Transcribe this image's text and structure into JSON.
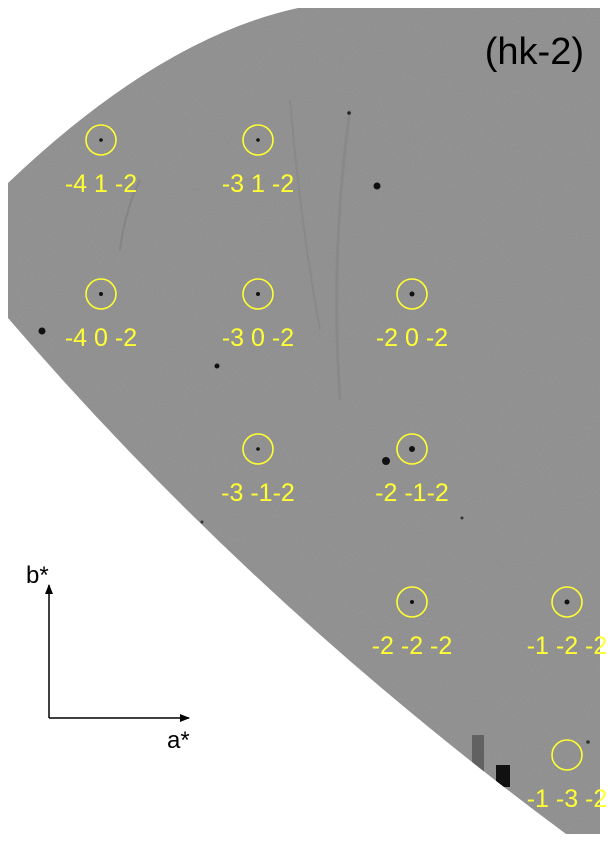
{
  "figure": {
    "title": "(hk-2)",
    "colors": {
      "detector_background": "#8d8d8d",
      "marker": "#ffff33",
      "spot": "#111111",
      "axis": "#000000"
    }
  },
  "reflections": [
    {
      "label": "-4 1 -2"
    },
    {
      "label": "-3 1 -2"
    },
    {
      "label": "-4 0 -2"
    },
    {
      "label": "-3 0 -2"
    },
    {
      "label": "-2 0 -2"
    },
    {
      "label": "-3 -1-2"
    },
    {
      "label": "-2 -1-2"
    },
    {
      "label": "-2 -2 -2"
    },
    {
      "label": "-1 -2 -2"
    },
    {
      "label": "-1 -3 -2"
    }
  ],
  "axes": {
    "a_label": "a*",
    "b_label": "b*"
  }
}
